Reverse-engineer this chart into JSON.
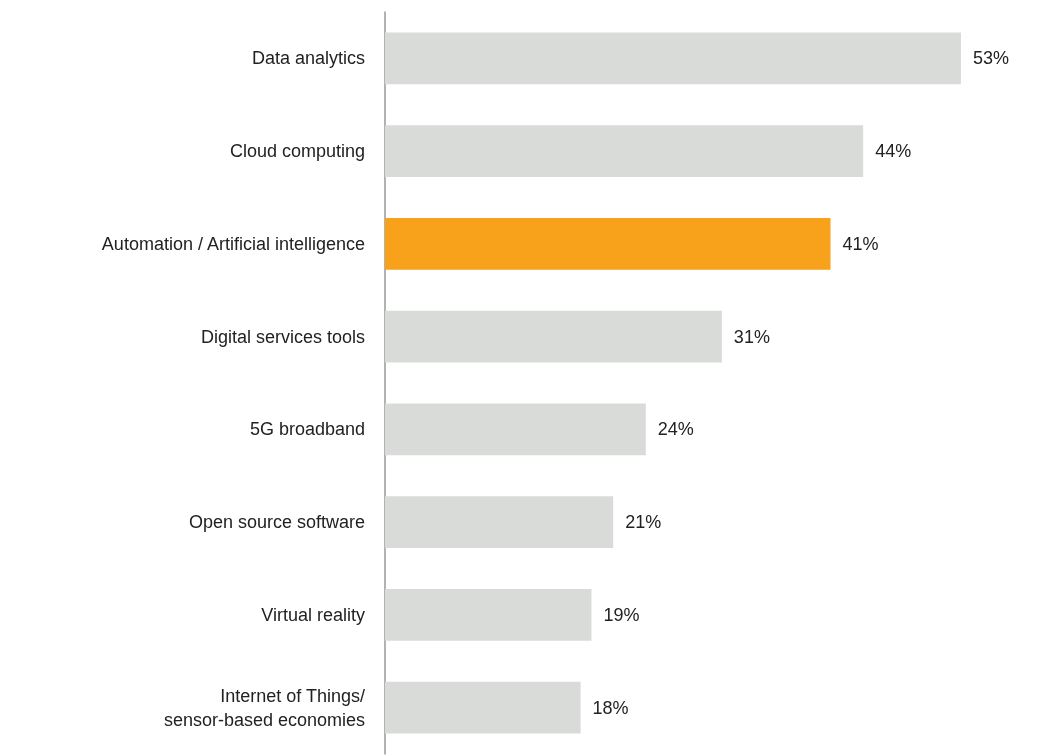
{
  "chart_data": {
    "type": "bar",
    "orientation": "horizontal",
    "tick_labels": "y",
    "categories": [
      "Data analytics",
      "Cloud computing",
      "Automation / Artificial intelligence",
      "Digital services tools",
      "5G broadband",
      "Open source software",
      "Virtual reality",
      "Internet of Things/\nsensor-based economies"
    ],
    "values": [
      53,
      44,
      41,
      31,
      24,
      21,
      19,
      18
    ],
    "colors": [
      "#d9dbd9",
      "#d9dbd9",
      "#f8a11b",
      "#d9dbd9",
      "#d9dbd9",
      "#d9dbd9",
      "#d9dbd9",
      "#d9dbd9"
    ],
    "value_labels": [
      "53%",
      "44%",
      "41%",
      "31%",
      "24%",
      "21%",
      "19%",
      "18%"
    ]
  }
}
